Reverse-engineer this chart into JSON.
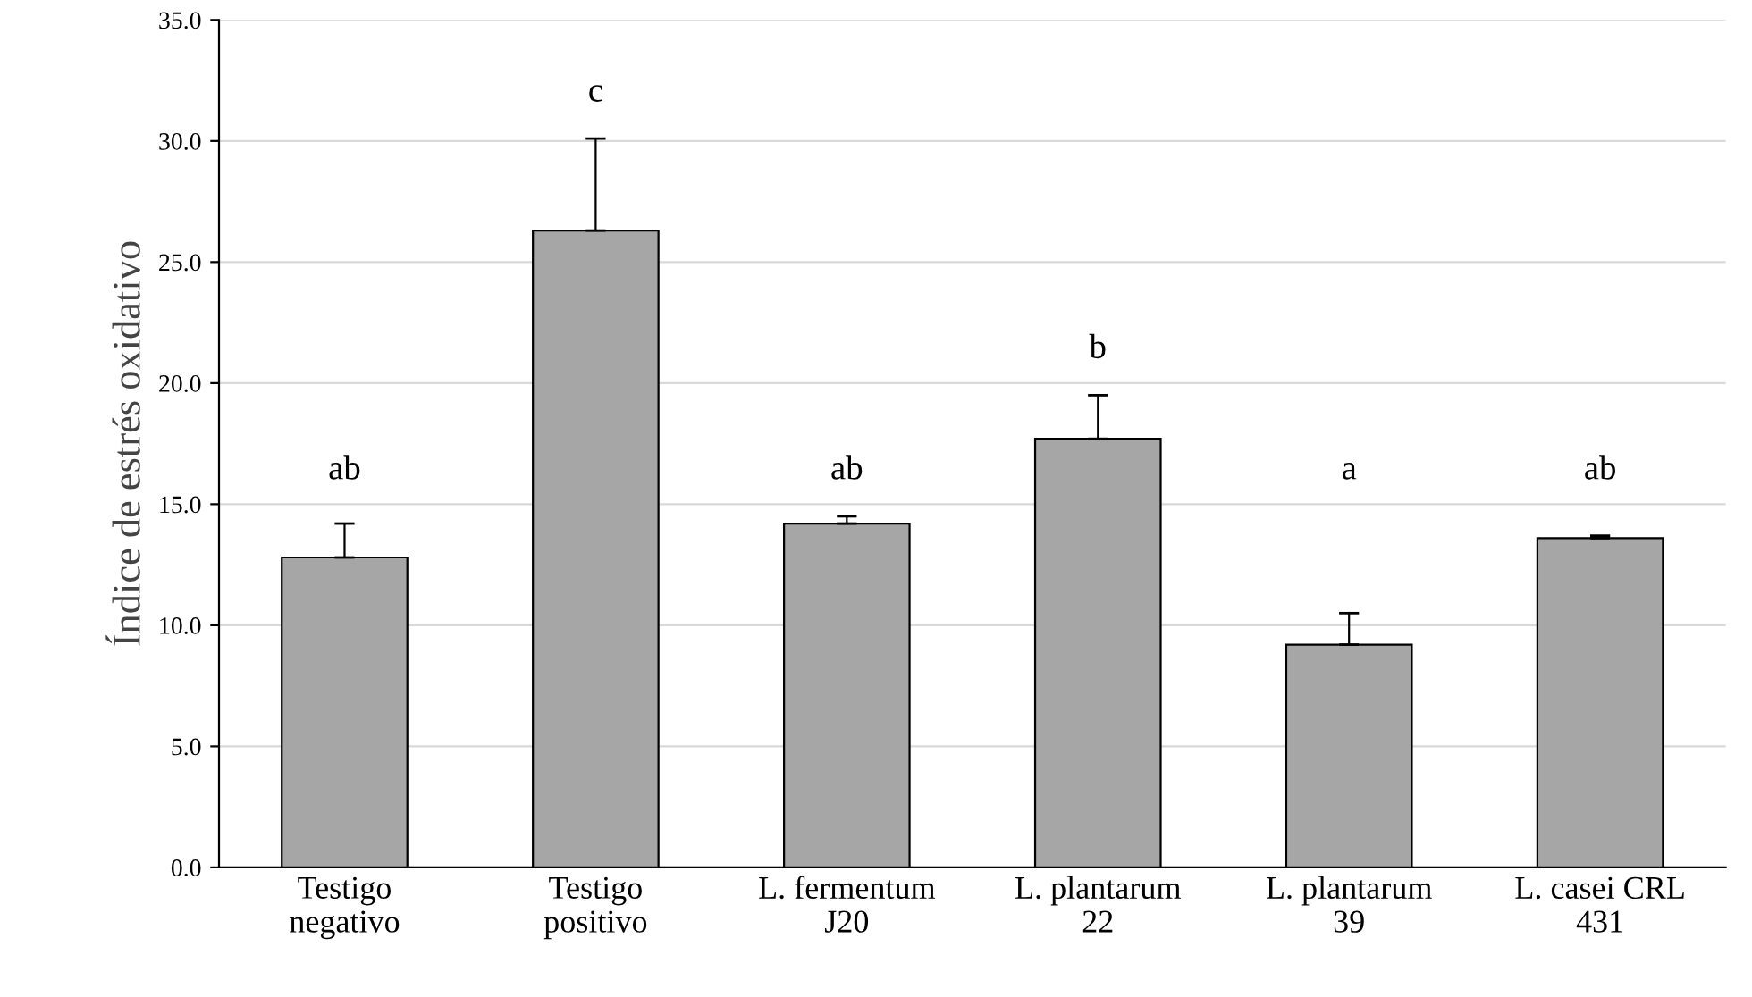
{
  "chart_data": {
    "type": "bar",
    "ylabel": "Índice de estrés oxidativo",
    "categories": [
      "Testigo\nnegativo",
      "Testigo\npositivo",
      "L. fermentum\nJ20",
      "L. plantarum\n22",
      "L. plantarum\n39",
      "L. casei CRL\n431"
    ],
    "values": [
      12.8,
      26.3,
      14.2,
      17.7,
      9.2,
      13.6
    ],
    "errors": [
      [
        12.8,
        14.2
      ],
      [
        26.3,
        30.1
      ],
      [
        14.2,
        14.5
      ],
      [
        17.7,
        19.5
      ],
      [
        9.2,
        10.5
      ],
      [
        13.6,
        13.7
      ]
    ],
    "color": "#a6a6a6",
    "ylim": [
      0,
      35
    ],
    "yticks": [
      {
        "value": 0,
        "label": "0.0"
      },
      {
        "value": 5,
        "label": "5.0"
      },
      {
        "value": 10,
        "label": "10.0"
      },
      {
        "value": 15,
        "label": "15.0"
      },
      {
        "value": 20,
        "label": "20.0"
      },
      {
        "value": 25,
        "label": "25.0"
      },
      {
        "value": 30,
        "label": "30.0"
      },
      {
        "value": 35,
        "label": "35.0"
      }
    ],
    "grid": "y",
    "annotations": [
      "ab",
      "c",
      "ab",
      "b",
      "a",
      "ab"
    ]
  }
}
